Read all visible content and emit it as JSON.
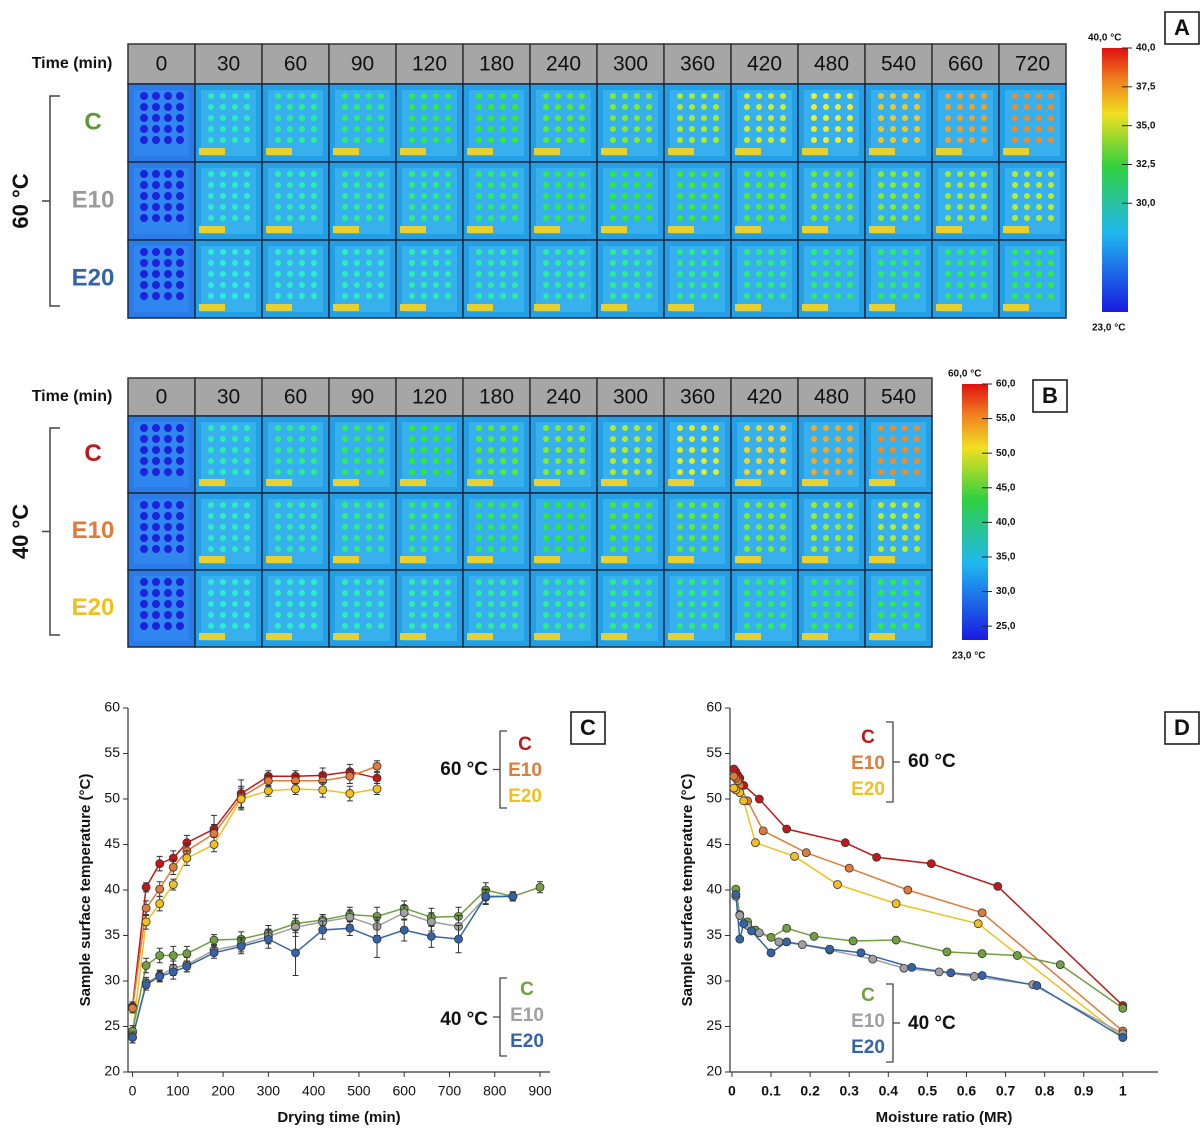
{
  "panel_a": {
    "label": "A",
    "time_header": "Time (min)",
    "times": [
      0,
      30,
      60,
      90,
      120,
      180,
      240,
      300,
      360,
      420,
      480,
      540,
      660,
      720
    ],
    "group": "60 °C",
    "rows": [
      "C",
      "E10",
      "E20"
    ],
    "row_colors": [
      "#5a9a32",
      "#9a9a9a",
      "#3563a8"
    ],
    "colorbar": {
      "top_label": "40,0 °C",
      "bottom_label": "23,0 °C",
      "lim": [
        23,
        40
      ],
      "ticks": [
        {
          "value": 40,
          "label": "40,0"
        },
        {
          "value": 37.5,
          "label": "37,5"
        },
        {
          "value": 35,
          "label": "35,0"
        },
        {
          "value": 32.5,
          "label": "32,5"
        },
        {
          "value": 30,
          "label": "30,0"
        }
      ]
    }
  },
  "panel_b": {
    "label": "B",
    "time_header": "Time (min)",
    "times": [
      0,
      30,
      60,
      90,
      120,
      180,
      240,
      300,
      360,
      420,
      480,
      540
    ],
    "group": "40 °C",
    "rows": [
      "C",
      "E10",
      "E20"
    ],
    "row_colors": [
      "#c01818",
      "#e07b39",
      "#f0c020"
    ],
    "colorbar": {
      "top_label": "60,0 °C",
      "bottom_label": "23,0 °C",
      "lim": [
        23,
        60
      ],
      "ticks": [
        {
          "value": 60,
          "label": "60,0"
        },
        {
          "value": 55,
          "label": "55,0"
        },
        {
          "value": 50,
          "label": "50,0"
        },
        {
          "value": 45,
          "label": "45,0"
        },
        {
          "value": 40,
          "label": "40,0"
        },
        {
          "value": 35,
          "label": "35,0"
        },
        {
          "value": 30,
          "label": "30,0"
        },
        {
          "value": 25,
          "label": "25,0"
        }
      ]
    }
  },
  "chart_data": [
    {
      "type": "line",
      "panel_label": "C",
      "x_label": "Drying time (min)",
      "y_label": "Sample surface temperature (°C)",
      "xlim": [
        -10,
        922
      ],
      "xticks": [
        0,
        100,
        200,
        300,
        400,
        500,
        600,
        700,
        800,
        900
      ],
      "ylim": [
        20,
        60
      ],
      "yticks": [
        20,
        25,
        30,
        35,
        40,
        45,
        50,
        55,
        60
      ],
      "series_groups": [
        {
          "label": "60 °C",
          "series": [
            {
              "name": "C",
              "color": "#c01818",
              "x": [
                0,
                30,
                60,
                90,
                120,
                180,
                240,
                300,
                360,
                420,
                480,
                540
              ],
              "values": [
                27.2,
                40.3,
                42.9,
                43.5,
                45.2,
                46.7,
                50.6,
                52.5,
                52.5,
                52.6,
                53.0,
                52.3
              ],
              "errors": [
                0.5,
                0.5,
                0.8,
                0.8,
                0.8,
                1.5,
                1.5,
                0.6,
                0.6,
                0.8,
                0.8,
                0.6
              ]
            },
            {
              "name": "E10",
              "color": "#e07b39",
              "x": [
                0,
                30,
                60,
                90,
                120,
                180,
                240,
                300,
                360,
                420,
                480,
                540
              ],
              "values": [
                27.0,
                38.0,
                40.1,
                42.5,
                44.3,
                46.2,
                50.2,
                52.0,
                52.0,
                52.0,
                52.5,
                53.6
              ],
              "errors": [
                0.5,
                0.8,
                0.8,
                0.8,
                0.8,
                1.0,
                1.2,
                0.6,
                0.6,
                0.8,
                0.8,
                0.6
              ]
            },
            {
              "name": "E20",
              "color": "#f0c020",
              "x": [
                0,
                30,
                60,
                90,
                120,
                180,
                240,
                300,
                360,
                420,
                480,
                540
              ],
              "values": [
                24.3,
                36.5,
                38.5,
                40.6,
                43.5,
                45.0,
                50.0,
                50.9,
                51.1,
                51.0,
                50.6,
                51.1
              ],
              "errors": [
                0.5,
                0.8,
                0.8,
                0.6,
                0.8,
                0.8,
                1.2,
                0.6,
                0.6,
                0.8,
                0.8,
                0.6
              ]
            }
          ]
        },
        {
          "label": "40 °C",
          "series": [
            {
              "name": "C",
              "color": "#70a040",
              "x": [
                0,
                30,
                60,
                90,
                120,
                180,
                240,
                300,
                360,
                420,
                480,
                540,
                600,
                660,
                720,
                780,
                840,
                900
              ],
              "values": [
                24.5,
                31.7,
                32.8,
                32.8,
                33.0,
                34.5,
                34.6,
                35.3,
                36.3,
                36.7,
                37.3,
                37.1,
                38.0,
                37.0,
                37.1,
                40.0,
                39.3,
                40.3
              ],
              "errors": [
                0.6,
                0.8,
                0.8,
                1.0,
                0.8,
                0.6,
                0.8,
                0.8,
                1.0,
                0.6,
                0.8,
                1.0,
                0.8,
                1.0,
                1.0,
                0.8,
                0.5,
                0.6
              ]
            },
            {
              "name": "E10",
              "color": "#a0a0a0",
              "x": [
                0,
                30,
                60,
                90,
                120,
                180,
                240,
                300,
                360,
                420,
                480,
                540,
                600,
                660,
                720,
                780,
                840
              ],
              "values": [
                23.8,
                29.8,
                30.6,
                31.4,
                31.8,
                33.4,
                34.0,
                34.9,
                35.9,
                36.5,
                37.0,
                36.0,
                37.5,
                36.5,
                36.0,
                39.2,
                39.3
              ],
              "errors": [
                0.6,
                0.6,
                0.6,
                0.8,
                0.8,
                0.6,
                0.8,
                0.8,
                1.0,
                0.8,
                0.8,
                1.0,
                0.8,
                1.0,
                1.2,
                0.8,
                0.5
              ]
            },
            {
              "name": "E20",
              "color": "#3563a8",
              "x": [
                0,
                30,
                60,
                90,
                120,
                180,
                240,
                300,
                360,
                420,
                480,
                540,
                600,
                660,
                720,
                780,
                840
              ],
              "values": [
                23.8,
                29.6,
                30.5,
                31.0,
                31.6,
                33.1,
                33.8,
                34.6,
                33.1,
                35.6,
                35.8,
                34.6,
                35.6,
                34.9,
                34.6,
                39.3,
                39.3
              ],
              "errors": [
                0.6,
                0.6,
                0.6,
                0.8,
                0.6,
                0.6,
                0.8,
                1.0,
                2.5,
                1.0,
                0.8,
                2.0,
                1.2,
                1.2,
                1.5,
                0.8,
                0.5
              ]
            }
          ]
        }
      ]
    },
    {
      "type": "line",
      "panel_label": "D",
      "x_label": "Moisture ratio (MR)",
      "y_label": "Sample surface temperature (°C)",
      "xlim": [
        -0.005,
        1.09
      ],
      "xticks": [
        0,
        0.1,
        0.2,
        0.3,
        0.4,
        0.5,
        0.6,
        0.7,
        0.8,
        0.9,
        1
      ],
      "ylim": [
        20,
        60
      ],
      "yticks": [
        20,
        25,
        30,
        35,
        40,
        45,
        50,
        55,
        60
      ],
      "series_groups": [
        {
          "label": "60 °C",
          "series": [
            {
              "name": "C",
              "color": "#c01818",
              "x": [
                1,
                0.68,
                0.51,
                0.37,
                0.29,
                0.14,
                0.07,
                0.03,
                0.02,
                0.015,
                0.01,
                0.005
              ],
              "values": [
                27.3,
                40.4,
                42.9,
                43.6,
                45.2,
                46.7,
                50.0,
                51.5,
                52.3,
                52.6,
                53.0,
                53.3
              ]
            },
            {
              "name": "E10",
              "color": "#e07b39",
              "x": [
                1,
                0.64,
                0.45,
                0.3,
                0.19,
                0.08,
                0.04,
                0.02,
                0.015,
                0.01,
                0.005
              ],
              "values": [
                24.5,
                37.5,
                40.0,
                42.4,
                44.1,
                46.5,
                49.8,
                51.5,
                52.0,
                52.3,
                52.5
              ]
            },
            {
              "name": "E20",
              "color": "#f0c020",
              "x": [
                1,
                0.63,
                0.42,
                0.27,
                0.16,
                0.06,
                0.03,
                0.02,
                0.01,
                0.005
              ],
              "values": [
                23.8,
                36.3,
                38.5,
                40.6,
                43.7,
                45.2,
                49.8,
                50.7,
                51.0,
                51.2
              ]
            }
          ]
        },
        {
          "label": "40 °C",
          "series": [
            {
              "name": "C",
              "color": "#70a040",
              "x": [
                1,
                0.84,
                0.73,
                0.64,
                0.55,
                0.42,
                0.31,
                0.21,
                0.14,
                0.1,
                0.06,
                0.04,
                0.02,
                0.01
              ],
              "values": [
                27.0,
                31.8,
                32.8,
                33.0,
                33.2,
                34.5,
                34.4,
                34.9,
                35.8,
                34.8,
                35.6,
                36.5,
                37.3,
                40.1
              ]
            },
            {
              "name": "E10",
              "color": "#a0a0a0",
              "x": [
                1,
                0.77,
                0.62,
                0.53,
                0.44,
                0.36,
                0.25,
                0.18,
                0.12,
                0.07,
                0.04,
                0.02,
                0.01
              ],
              "values": [
                24.2,
                29.6,
                30.5,
                31.0,
                31.4,
                32.4,
                33.4,
                34.0,
                34.3,
                35.3,
                36.1,
                37.2,
                39.3
              ]
            },
            {
              "name": "E20",
              "color": "#3563a8",
              "x": [
                1,
                0.78,
                0.64,
                0.56,
                0.46,
                0.33,
                0.25,
                0.14,
                0.1,
                0.05,
                0.03,
                0.02,
                0.01
              ],
              "values": [
                23.8,
                29.5,
                30.6,
                30.9,
                31.5,
                33.1,
                33.5,
                34.3,
                33.1,
                35.5,
                36.3,
                34.6,
                39.5
              ]
            }
          ]
        }
      ]
    }
  ]
}
